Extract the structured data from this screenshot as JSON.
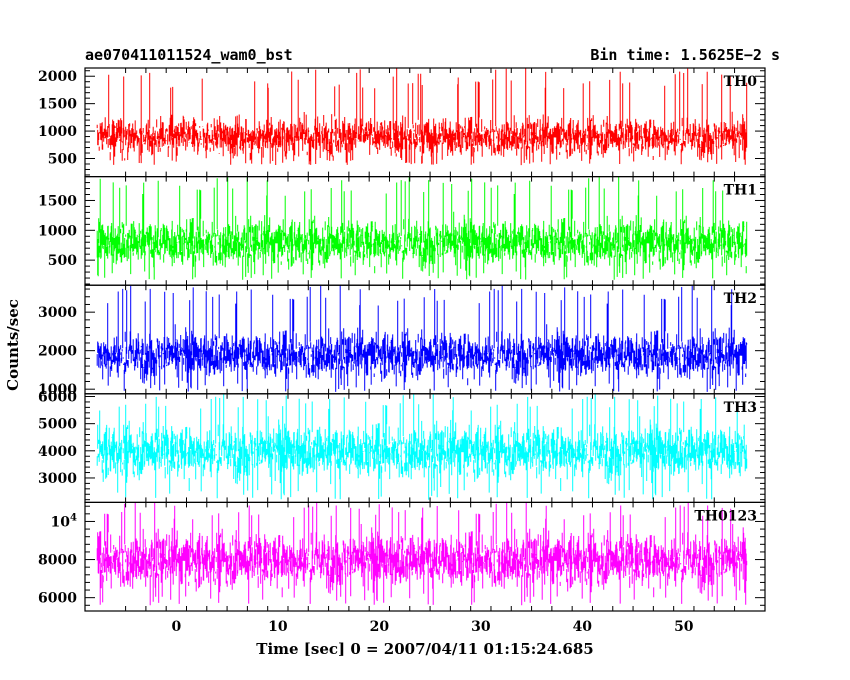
{
  "header": {
    "title": "ae070411011524_wam0_bst",
    "bin_time": "Bin time: 1.5625E−2 s"
  },
  "chart_data": {
    "type": "line",
    "xlabel": "Time [sec] 0 = 2007/04/11 01:15:24.685",
    "ylabel": "Counts/sec",
    "xlim": [
      -9,
      58
    ],
    "x_ticks": [
      0,
      10,
      20,
      30,
      40,
      50
    ],
    "x_range_data": [
      -7.8,
      56.2
    ],
    "series": [
      {
        "name": "TH0",
        "color": "#ff0000",
        "ylim": [
          170,
          2150
        ],
        "y_ticks": [
          500,
          1000,
          1500,
          2000
        ],
        "y_tick_labels": [
          "500",
          "1000",
          "1500",
          "2000"
        ],
        "base": 900,
        "noise": 230,
        "min": 380,
        "max": 2150
      },
      {
        "name": "TH1",
        "color": "#00ff00",
        "ylim": [
          80,
          1900
        ],
        "y_ticks": [
          500,
          1000,
          1500
        ],
        "y_tick_labels": [
          "500",
          "1000",
          "1500"
        ],
        "base": 800,
        "noise": 260,
        "min": 170,
        "max": 1900
      },
      {
        "name": "TH2",
        "color": "#0000ff",
        "ylim": [
          880,
          3700
        ],
        "y_ticks": [
          1000,
          2000,
          3000
        ],
        "y_tick_labels": [
          "1000",
          "2000",
          "3000"
        ],
        "base": 1900,
        "noise": 400,
        "min": 930,
        "max": 3700
      },
      {
        "name": "TH3",
        "color": "#00ffff",
        "ylim": [
          2100,
          6100
        ],
        "y_ticks": [
          3000,
          4000,
          5000,
          6000
        ],
        "y_tick_labels": [
          "3000",
          "4000",
          "5000",
          "6000"
        ],
        "base": 4000,
        "noise": 650,
        "min": 2200,
        "max": 6100
      },
      {
        "name": "TH0123",
        "color": "#ff00ff",
        "ylim": [
          5300,
          11000
        ],
        "y_ticks": [
          6000,
          8000,
          10000
        ],
        "y_tick_labels": [
          "6000",
          "8000",
          "10^4"
        ],
        "base": 8000,
        "noise": 950,
        "min": 5600,
        "max": 11000
      }
    ]
  }
}
